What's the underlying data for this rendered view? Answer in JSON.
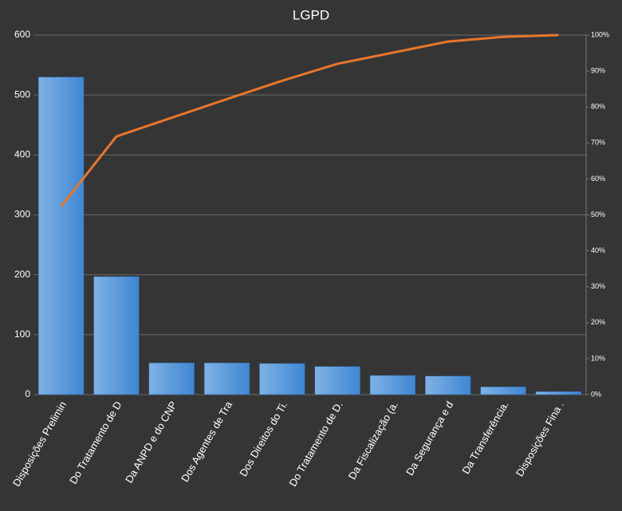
{
  "chart_data": {
    "type": "pareto",
    "title": "LGPD",
    "categories": [
      "Disposições Prelimin",
      "Do Tratamento de D",
      "Da ANPD e do CNP",
      "Dos Agentes de Tra",
      "Dos Direitos do Ti.",
      "Do Tratamento de D.",
      "Da Fiscalização (a.",
      "Da Segurança e d",
      "Da Transferência.",
      "Disposições Fina ."
    ],
    "series": [
      {
        "color": "#4a90d9",
        "values": [
          530,
          197,
          53,
          53,
          52,
          47,
          32,
          31,
          13,
          5
        ]
      },
      {
        "color": "#e8762c",
        "axis": "y2",
        "values": [
          52.3,
          71.8,
          77.0,
          82.2,
          87.3,
          92.0,
          95.1,
          98.2,
          99.5,
          100
        ]
      }
    ],
    "ylim": [
      0,
      600
    ],
    "yticks": [
      0,
      100,
      200,
      300,
      400,
      500,
      600
    ],
    "y2lim": [
      0,
      100
    ],
    "y2ticks": [
      {
        "value": 0,
        "label": "0%"
      },
      {
        "value": 10,
        "label": "10%"
      },
      {
        "value": 20,
        "label": "20%"
      },
      {
        "value": 30,
        "label": "30%"
      },
      {
        "value": 40,
        "label": "40%"
      },
      {
        "value": 50,
        "label": "50%"
      },
      {
        "value": 60,
        "label": "60%"
      },
      {
        "value": 70,
        "label": "70%"
      },
      {
        "value": 80,
        "label": "80%"
      },
      {
        "value": 90,
        "label": "90%"
      },
      {
        "value": 100,
        "label": "100%"
      }
    ],
    "grid": true
  }
}
